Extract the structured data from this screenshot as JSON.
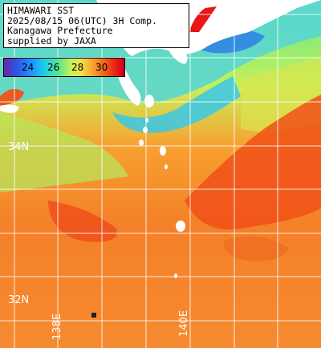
{
  "info": {
    "line1": "HIMAWARI SST",
    "line2": "2025/08/15 06(UTC) 3H Comp.",
    "line3": "Kanagawa Prefecture",
    "line4": "supplied by JAXA"
  },
  "scale": {
    "ticks": [
      "24",
      "26",
      "28",
      "30"
    ],
    "colors": {
      "cold": "#6a2aa8",
      "cool": "#1ed0e6",
      "mid": "#c8f05a",
      "warm": "#f8a030",
      "hot": "#e81818"
    }
  },
  "grid_labels": {
    "lat_34": "34N",
    "lat_32": "32N",
    "lon_138": "138E",
    "lon_140": "140E"
  },
  "land_color": "#ffffff",
  "grid_color": "#ffffff"
}
